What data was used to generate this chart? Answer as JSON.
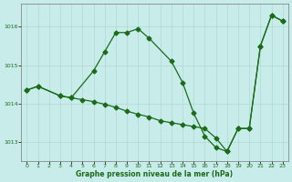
{
  "line1_x": [
    0,
    1,
    3,
    4,
    6,
    7,
    8,
    9,
    10,
    11,
    13,
    14,
    15,
    16,
    17,
    18,
    19,
    20,
    21,
    22,
    23
  ],
  "line1_y": [
    1014.35,
    1014.45,
    1014.2,
    1014.15,
    1014.85,
    1015.35,
    1015.85,
    1015.85,
    1015.95,
    1015.7,
    1015.1,
    1014.55,
    1013.75,
    1013.15,
    1012.85,
    1012.75,
    1013.35,
    1013.35,
    1015.5,
    1016.3,
    1016.15
  ],
  "line2_x": [
    0,
    1,
    3,
    4,
    5,
    6,
    7,
    8,
    9,
    10,
    11,
    12,
    13,
    14,
    15,
    16,
    17,
    18,
    19,
    20,
    21,
    22,
    23
  ],
  "line2_y": [
    1014.35,
    1014.45,
    1014.2,
    1014.15,
    1014.1,
    1014.05,
    1013.98,
    1013.9,
    1013.8,
    1013.72,
    1013.65,
    1013.55,
    1013.5,
    1013.45,
    1013.4,
    1013.35,
    1013.1,
    1012.75,
    1013.35,
    1013.35,
    1015.5,
    1016.3,
    1016.15
  ],
  "line_color": "#1a6b1a",
  "bg_color": "#c8ecea",
  "grid_color": "#b0d8d4",
  "xlabel": "Graphe pression niveau de la mer (hPa)",
  "ylim": [
    1012.5,
    1016.6
  ],
  "xlim": [
    -0.5,
    23.5
  ],
  "yticks": [
    1013,
    1014,
    1015,
    1016
  ],
  "xticks": [
    0,
    1,
    2,
    3,
    4,
    5,
    6,
    7,
    8,
    9,
    10,
    11,
    12,
    13,
    14,
    15,
    16,
    17,
    18,
    19,
    20,
    21,
    22,
    23
  ]
}
